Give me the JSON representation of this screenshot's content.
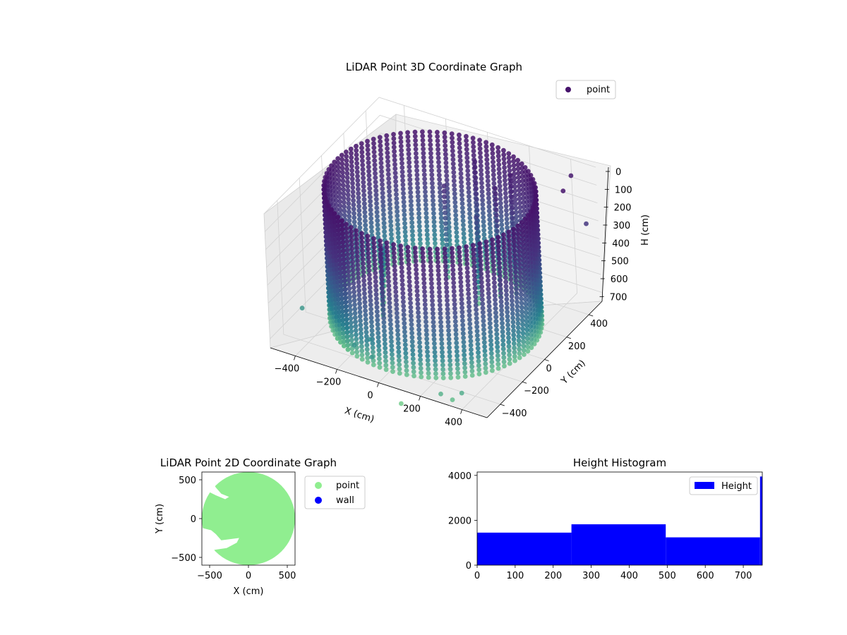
{
  "chart_data": [
    {
      "type": "scatter3d",
      "title": "LiDAR Point 3D Coordinate Graph",
      "xlabel": "X (cm)",
      "ylabel": "Y (cm)",
      "zlabel": "H (cm)",
      "xticks": [
        -400,
        -200,
        0,
        200,
        400
      ],
      "yticks": [
        -400,
        -200,
        0,
        200,
        400
      ],
      "zticks": [
        0,
        100,
        200,
        300,
        400,
        500,
        600,
        700
      ],
      "xlim": [
        -520,
        520
      ],
      "ylim": [
        -520,
        520
      ],
      "zlim": [
        0,
        750
      ],
      "zinverted": true,
      "legend": {
        "entries": [
          "point"
        ],
        "location": "top-right"
      },
      "colormap": "viridis",
      "series": [
        {
          "name": "point",
          "color": "#46136b"
        }
      ],
      "wall": {
        "radius_cm": 450,
        "height_cm": [
          0,
          720
        ],
        "arc_deg": [
          -130,
          245
        ]
      },
      "inner_points": [
        {
          "x": -350,
          "y": 200,
          "h": 600
        },
        {
          "x": -300,
          "y": 100,
          "h": 500
        },
        {
          "x": -250,
          "y": 0,
          "h": 420
        },
        {
          "x": -200,
          "y": -100,
          "h": 380
        },
        {
          "x": 50,
          "y": 300,
          "h": 320
        },
        {
          "x": 100,
          "y": 200,
          "h": 420
        },
        {
          "x": 150,
          "y": 300,
          "h": 120
        },
        {
          "x": 200,
          "y": 350,
          "h": 60
        },
        {
          "x": -100,
          "y": 300,
          "h": 200
        },
        {
          "x": 0,
          "y": 400,
          "h": 90
        }
      ],
      "outlier_points": [
        {
          "x": 300,
          "y": -520,
          "h": 700
        },
        {
          "x": 350,
          "y": -510,
          "h": 720
        },
        {
          "x": 380,
          "y": -480,
          "h": 690
        },
        {
          "x": 150,
          "y": -600,
          "h": 760
        },
        {
          "x": 420,
          "y": 480,
          "h": 60
        },
        {
          "x": 480,
          "y": 300,
          "h": 10
        },
        {
          "x": 500,
          "y": 450,
          "h": 280
        },
        {
          "x": -480,
          "y": -300,
          "h": 650
        },
        {
          "x": -150,
          "y": -450,
          "h": 640
        },
        {
          "x": -50,
          "y": -480,
          "h": 650
        },
        {
          "x": -100,
          "y": -400,
          "h": 620
        }
      ]
    },
    {
      "type": "scatter",
      "title": "LiDAR Point 2D Coordinate Graph",
      "xlabel": "X (cm)",
      "ylabel": "Y (cm)",
      "xticks": [
        -500,
        0,
        500
      ],
      "yticks": [
        -500,
        0,
        500
      ],
      "xlim": [
        -600,
        600
      ],
      "ylim": [
        -600,
        600
      ],
      "legend": {
        "entries": [
          "point",
          "wall"
        ],
        "location": "outside-right"
      },
      "series": [
        {
          "name": "point",
          "color": "#90ee90",
          "shape": "disk",
          "radius_cm": 600,
          "center": [
            0,
            0
          ]
        },
        {
          "name": "wall",
          "color": "#0000ff",
          "points": []
        }
      ],
      "gaps": [
        [
          [
            -600,
            520
          ],
          [
            -480,
            500
          ],
          [
            -420,
            400
          ],
          [
            -350,
            320
          ],
          [
            -250,
            280
          ],
          [
            -300,
            250
          ],
          [
            -420,
            300
          ],
          [
            -520,
            350
          ],
          [
            -600,
            380
          ]
        ],
        [
          [
            -600,
            -120
          ],
          [
            -480,
            -150
          ],
          [
            -420,
            -200
          ],
          [
            -350,
            -280
          ],
          [
            -200,
            -260
          ],
          [
            -120,
            -250
          ],
          [
            -150,
            -310
          ],
          [
            -280,
            -380
          ],
          [
            -420,
            -400
          ],
          [
            -520,
            -420
          ],
          [
            -600,
            -440
          ]
        ]
      ]
    },
    {
      "type": "histogram",
      "title": "Height Histogram",
      "xticks": [
        0,
        100,
        200,
        300,
        400,
        500,
        600,
        700
      ],
      "yticks": [
        0,
        2000,
        4000
      ],
      "xlim": [
        0,
        750
      ],
      "ylim": [
        0,
        4150
      ],
      "legend": {
        "entries": [
          "Height"
        ],
        "location": "top-right"
      },
      "series": [
        {
          "name": "Height",
          "color": "#0000ff"
        }
      ],
      "bins": [
        {
          "x0": 0,
          "x1": 248,
          "count": 1450
        },
        {
          "x0": 248,
          "x1": 496,
          "count": 1820
        },
        {
          "x0": 496,
          "x1": 744,
          "count": 1240
        },
        {
          "x0": 744,
          "x1": 750,
          "count": 3950
        }
      ]
    }
  ]
}
